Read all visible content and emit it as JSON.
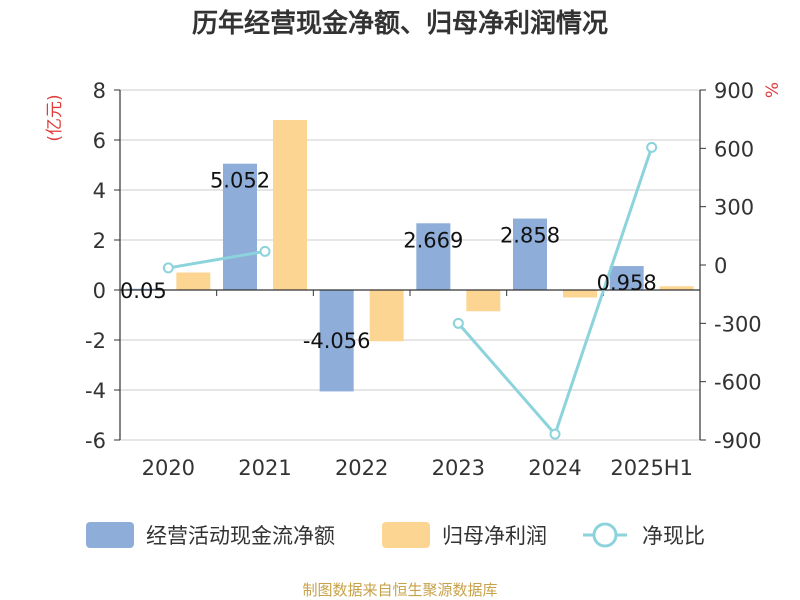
{
  "chart_data": {
    "type": "bar",
    "title": "历年经营现金净额、归母净利润情况",
    "categories": [
      "2020",
      "2021",
      "2022",
      "2023",
      "2024",
      "2025H1"
    ],
    "y_left": {
      "unit": "(亿元)",
      "min": -6,
      "max": 8,
      "ticks": [
        -6,
        -4,
        -2,
        0,
        2,
        4,
        6,
        8
      ]
    },
    "y_right": {
      "unit": "%",
      "min": -900,
      "max": 900,
      "ticks": [
        -900,
        -600,
        -300,
        0,
        300,
        600,
        900
      ]
    },
    "grid": true,
    "legend_position": "bottom",
    "series": [
      {
        "name": "经营活动现金流净额",
        "type": "bar",
        "axis": "left",
        "color": "#8eadd9",
        "values": [
          0.05,
          5.052,
          -4.056,
          2.669,
          2.858,
          0.958
        ],
        "labels": [
          "0.05",
          "5.052",
          "-4.056",
          "2.669",
          "2.858",
          "0.958"
        ]
      },
      {
        "name": "归母净利润",
        "type": "bar",
        "axis": "left",
        "color": "#fdd592",
        "values": [
          0.7,
          6.8,
          -2.05,
          -0.85,
          -0.3,
          0.15
        ]
      },
      {
        "name": "净现比",
        "type": "line",
        "axis": "right",
        "color": "#8cd3dc",
        "values": [
          -15,
          70,
          null,
          -300,
          -870,
          605
        ]
      }
    ]
  },
  "source": "制图数据来自恒生聚源数据库"
}
